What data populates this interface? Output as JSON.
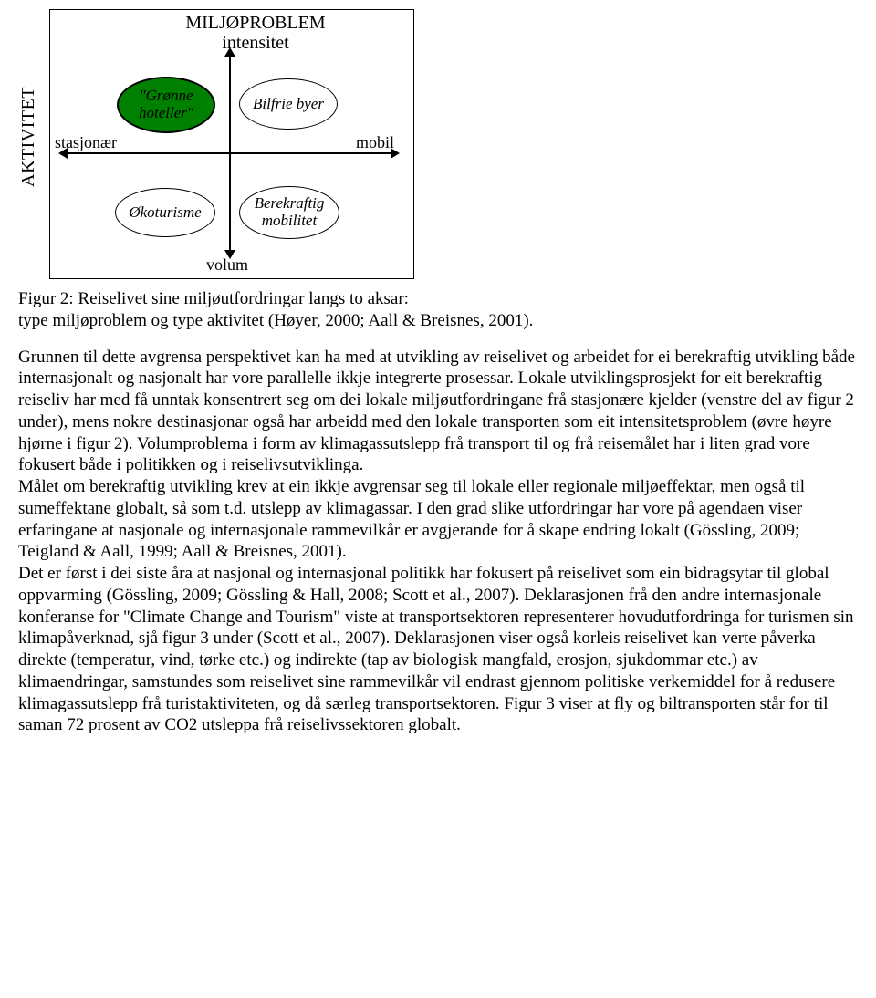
{
  "diagram": {
    "type": "quadrant",
    "border_color": "#000000",
    "background_color": "#ffffff",
    "vertical_axis_label": "AKTIVITET",
    "title_line1": "MILJØPROBLEM",
    "title_line2": "intensitet",
    "axis_labels": {
      "left": "stasjonær",
      "right": "mobil",
      "bottom": "volum"
    },
    "ellipses": {
      "top_left": {
        "text": "\"Grønne hoteller\"",
        "fill": "#008000",
        "font_italic": true
      },
      "top_right": {
        "text": "Bilfrie byer",
        "fill": "#ffffff",
        "font_italic": true
      },
      "bottom_left": {
        "text": "Økoturisme",
        "fill": "#ffffff",
        "font_italic": true
      },
      "bottom_right": {
        "text": "Berekraftig mobilitet",
        "fill": "#ffffff",
        "font_italic": true
      }
    },
    "font_family": "Times New Roman",
    "title_fontsize": 20,
    "label_fontsize": 18,
    "ellipse_fontsize": 17
  },
  "caption": {
    "line1": "Figur 2: Reiselivet sine miljøutfordringar langs to aksar:",
    "line2": "type miljøproblem og type aktivitet (Høyer, 2000; Aall & Breisnes, 2001)."
  },
  "paragraphs": {
    "p1": "Grunnen til dette avgrensa perspektivet kan ha med at utvikling av reiselivet og arbeidet for ei berekraftig utvikling både internasjonalt og nasjonalt har vore parallelle ikkje integrerte prosessar. Lokale utviklingsprosjekt for eit berekraftig reiseliv har med få unntak konsentrert seg om dei lokale miljøutfordringane frå stasjonære kjelder (venstre del av figur 2 under), mens nokre destinasjonar også har arbeidd med den lokale transporten som eit intensitetsproblem (øvre høyre hjørne i figur 2). Volumproblema i form av klimagassutslepp frå transport til og frå reisemålet har i liten grad vore fokusert både i politikken og i reiselivsutviklinga.",
    "p2": "Målet om berekraftig utvikling krev at ein ikkje avgrensar seg til lokale eller regionale miljøeffektar, men også til sumeffektane globalt, så som t.d. utslepp av klimagassar. I den grad slike utfordringar har vore på agendaen viser erfaringane at nasjonale og internasjonale rammevilkår er avgjerande for å skape endring lokalt (Gössling, 2009; Teigland & Aall, 1999; Aall & Breisnes, 2001).",
    "p3": "Det er først i dei siste åra at nasjonal og internasjonal politikk har fokusert på reiselivet som ein bidragsytar til global oppvarming (Gössling, 2009; Gössling & Hall, 2008; Scott et al., 2007).  Deklarasjonen frå den andre internasjonale konferanse for \"Climate Change and Tourism\" viste at transportsektoren representerer hovudutfordringa for turismen sin klimapåverknad, sjå figur 3 under (Scott et al., 2007). Deklarasjonen viser også korleis reiselivet kan verte påverka direkte (temperatur, vind, tørke etc.) og indirekte (tap av biologisk mangfald, erosjon, sjukdommar etc.) av klimaendringar, samstundes som reiselivet sine rammevilkår vil endrast gjennom politiske verkemiddel for å redusere klimagassutslepp frå turistaktiviteten, og då særleg transportsektoren. Figur 3 viser at fly og biltransporten står for til saman 72 prosent av CO2 utsleppa frå reiselivssektoren globalt."
  }
}
